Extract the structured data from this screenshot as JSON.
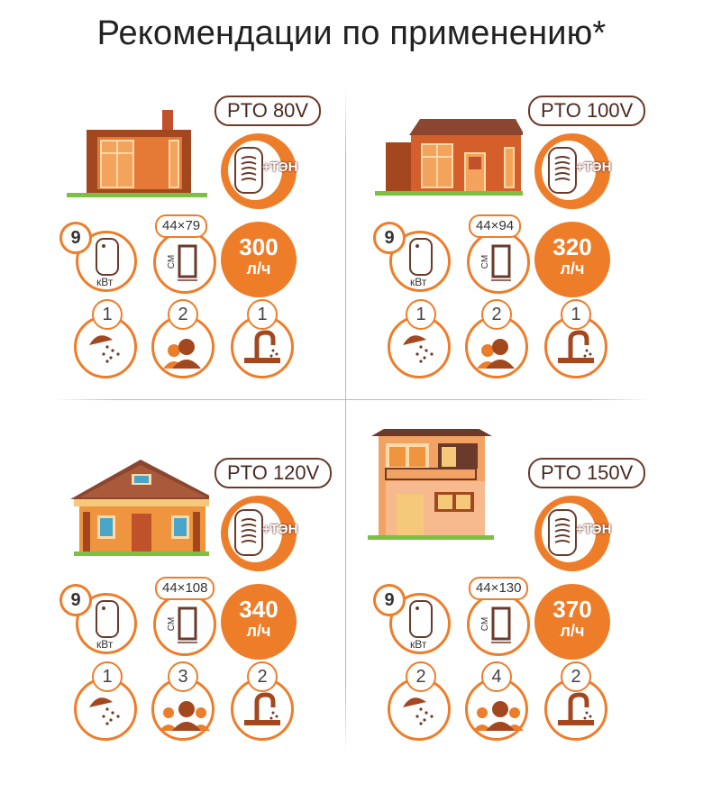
{
  "title": "Рекомендации по применению*",
  "colors": {
    "accent": "#ee7d2a",
    "brown": "#6b3a2a",
    "grass": "#7bc043"
  },
  "cells": [
    {
      "model": "PTO 80V",
      "ten": "+ТЭН",
      "power": "9",
      "power_unit": "кВт",
      "size": "44×79",
      "size_unit": "СМ",
      "flow_value": "300",
      "flow_unit": "л/ч",
      "showers": "1",
      "people": "2",
      "taps": "1"
    },
    {
      "model": "PTO 100V",
      "ten": "+ТЭН",
      "power": "9",
      "power_unit": "кВт",
      "size": "44×94",
      "size_unit": "СМ",
      "flow_value": "320",
      "flow_unit": "л/ч",
      "showers": "1",
      "people": "2",
      "taps": "1"
    },
    {
      "model": "PTO 120V",
      "ten": "+ТЭН",
      "power": "9",
      "power_unit": "кВт",
      "size": "44×108",
      "size_unit": "СМ",
      "flow_value": "340",
      "flow_unit": "л/ч",
      "showers": "1",
      "people": "3",
      "taps": "2"
    },
    {
      "model": "PTO 150V",
      "ten": "+ТЭН",
      "power": "9",
      "power_unit": "кВт",
      "size": "44×130",
      "size_unit": "СМ",
      "flow_value": "370",
      "flow_unit": "л/ч",
      "showers": "2",
      "people": "4",
      "taps": "2"
    }
  ]
}
